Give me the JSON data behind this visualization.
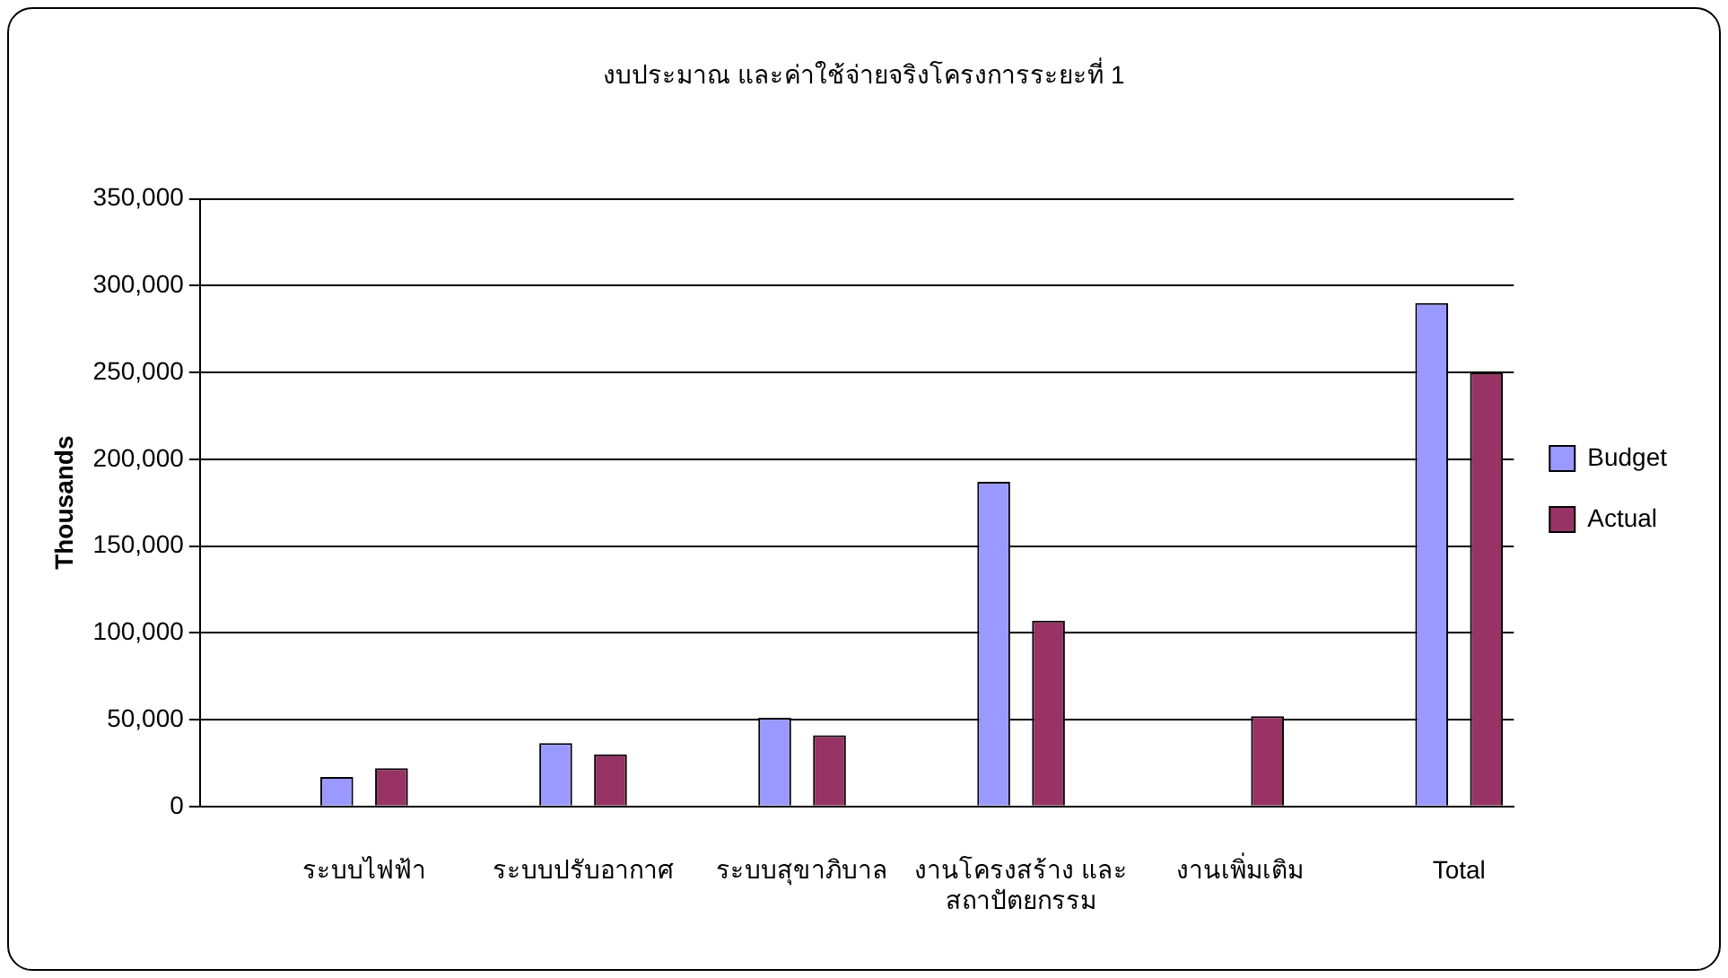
{
  "chart_data": {
    "type": "bar",
    "title": "งบประมาณ และค่าใช้จ่ายจริงโครงการระยะที่ 1",
    "ylabel": "Thousands",
    "categories": [
      null,
      "ระบบไฟฟ้า",
      null,
      "ระบบปรับอากาศ",
      null,
      "ระบบสุขาภิบาล",
      null,
      "งานโครงสร้าง และ สถาปัตยกรรม",
      null,
      "งานเพิ่มเติม",
      null,
      "Total"
    ],
    "series": [
      {
        "name": "Budget",
        "color": "#9999ff",
        "values": [
          null,
          17000,
          null,
          36500,
          null,
          51000,
          null,
          187000,
          null,
          null,
          null,
          290000
        ]
      },
      {
        "name": "Actual",
        "color": "#993366",
        "values": [
          null,
          22000,
          null,
          30000,
          null,
          41000,
          null,
          107000,
          null,
          52000,
          null,
          250000
        ]
      }
    ],
    "ylim": [
      0,
      350000
    ],
    "yticks": [
      {
        "value": 0,
        "label": "0"
      },
      {
        "value": 50000,
        "label": "50,000"
      },
      {
        "value": 100000,
        "label": "100,000"
      },
      {
        "value": 150000,
        "label": "150,000"
      },
      {
        "value": 200000,
        "label": "200,000"
      },
      {
        "value": 250000,
        "label": "250,000"
      },
      {
        "value": 300000,
        "label": "300,000"
      },
      {
        "value": 350000,
        "label": "350,000"
      }
    ],
    "grid": "y",
    "legend": "right"
  }
}
